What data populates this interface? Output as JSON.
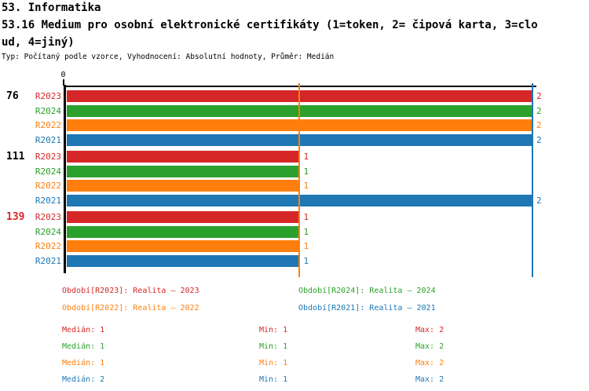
{
  "header": {
    "section": "53. Informatika",
    "title_line1": "53.16 Medium pro osobní elektronické certifikáty (1=token, 2= čipová karta, 3=clo",
    "title_line2": "ud, 4=jiný)",
    "meta": "Typ: Počítaný podle vzorce, Vyhodnocení: Absolutní hodnoty, Průměr: Medián"
  },
  "axis": {
    "zero_tick": "0"
  },
  "palette": {
    "R2023": "#d62728",
    "R2024": "#2ca02c",
    "R2022": "#ff7f0e",
    "R2021": "#1f77b4"
  },
  "chart_data": {
    "type": "bar",
    "orientation": "horizontal",
    "xlim": [
      0,
      2
    ],
    "x_ticks": [
      {
        "value": 0,
        "label": "0"
      }
    ],
    "grid": false,
    "series_order": [
      "R2023",
      "R2024",
      "R2022",
      "R2021"
    ],
    "groups": [
      {
        "label": "76",
        "label_color": "#000000",
        "values": {
          "R2023": 2,
          "R2024": 2,
          "R2022": 2,
          "R2021": 2
        }
      },
      {
        "label": "111",
        "label_color": "#000000",
        "values": {
          "R2023": 1,
          "R2024": 1,
          "R2022": 1,
          "R2021": 2
        }
      },
      {
        "label": "139",
        "label_color": "#d62728",
        "values": {
          "R2023": 1,
          "R2024": 1,
          "R2022": 1,
          "R2021": 1
        }
      }
    ],
    "reference_lines": [
      {
        "value": 1,
        "color": "#ff7f0e"
      },
      {
        "value": 2,
        "color": "#1f77b4"
      }
    ]
  },
  "legend": [
    {
      "series": "R2023",
      "label": "Období[R2023]: Realita – 2023",
      "color": "#d62728"
    },
    {
      "series": "R2024",
      "label": "Období[R2024]: Realita – 2024",
      "color": "#2ca02c"
    },
    {
      "series": "R2022",
      "label": "Období[R2022]: Realita – 2022",
      "color": "#ff7f0e"
    },
    {
      "series": "R2021",
      "label": "Období[R2021]: Realita – 2021",
      "color": "#1f77b4"
    }
  ],
  "stats": [
    {
      "series": "R2023",
      "color": "#d62728",
      "median": "Medián: 1",
      "min": "Min: 1",
      "max": "Max: 2"
    },
    {
      "series": "R2024",
      "color": "#2ca02c",
      "median": "Medián: 1",
      "min": "Min: 1",
      "max": "Max: 2"
    },
    {
      "series": "R2022",
      "color": "#ff7f0e",
      "median": "Medián: 1",
      "min": "Min: 1",
      "max": "Max: 2"
    },
    {
      "series": "R2021",
      "color": "#1f77b4",
      "median": "Medián: 2",
      "min": "Min: 1",
      "max": "Max: 2"
    }
  ]
}
